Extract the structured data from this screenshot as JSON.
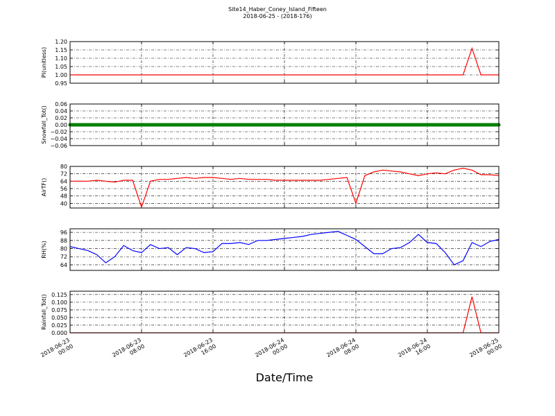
{
  "title": "Site14_Haber_Coney_Island_Fifteen",
  "subtitle": "2018-06-25 - (2018-176)",
  "x_axis": {
    "label": "Date/Time",
    "xlim": [
      "2018-06-23 00:00",
      "2018-06-25 00:00"
    ],
    "xticks": [
      "2018-06-23 00:00",
      "2018-06-23 08:00",
      "2018-06-23 16:00",
      "2018-06-24 00:00",
      "2018-06-24 08:00",
      "2018-06-24 16:00",
      "2018-06-25 00:00"
    ],
    "x": [
      "2018-06-23 00:00",
      "2018-06-23 01:00",
      "2018-06-23 02:00",
      "2018-06-23 03:00",
      "2018-06-23 04:00",
      "2018-06-23 05:00",
      "2018-06-23 06:00",
      "2018-06-23 07:00",
      "2018-06-23 08:00",
      "2018-06-23 09:00",
      "2018-06-23 10:00",
      "2018-06-23 11:00",
      "2018-06-23 12:00",
      "2018-06-23 13:00",
      "2018-06-23 14:00",
      "2018-06-23 15:00",
      "2018-06-23 16:00",
      "2018-06-23 17:00",
      "2018-06-23 18:00",
      "2018-06-23 19:00",
      "2018-06-23 20:00",
      "2018-06-23 21:00",
      "2018-06-23 22:00",
      "2018-06-23 23:00",
      "2018-06-24 00:00",
      "2018-06-24 01:00",
      "2018-06-24 02:00",
      "2018-06-24 03:00",
      "2018-06-24 04:00",
      "2018-06-24 05:00",
      "2018-06-24 06:00",
      "2018-06-24 07:00",
      "2018-06-24 08:00",
      "2018-06-24 09:00",
      "2018-06-24 10:00",
      "2018-06-24 11:00",
      "2018-06-24 12:00",
      "2018-06-24 13:00",
      "2018-06-24 14:00",
      "2018-06-24 15:00",
      "2018-06-24 16:00",
      "2018-06-24 17:00",
      "2018-06-24 18:00",
      "2018-06-24 19:00",
      "2018-06-24 20:00",
      "2018-06-24 21:00",
      "2018-06-24 22:00",
      "2018-06-24 23:00",
      "2018-06-25 00:00"
    ]
  },
  "chart_data": [
    {
      "type": "line",
      "ylabel": "PI(unitless)",
      "grid": true,
      "ylim": [
        0.95,
        1.2
      ],
      "yticks": [
        {
          "value": 0.95,
          "label": "0.95"
        },
        {
          "value": 1.0,
          "label": "1.00"
        },
        {
          "value": 1.05,
          "label": "1.05"
        },
        {
          "value": 1.1,
          "label": "1.10"
        },
        {
          "value": 1.15,
          "label": "1.15"
        },
        {
          "value": 1.2,
          "label": "1.20"
        }
      ],
      "series": [
        {
          "color": "#ff0000",
          "values": [
            1,
            1,
            1,
            1,
            1,
            1,
            1,
            1,
            1,
            1,
            1,
            1,
            1,
            1,
            1,
            1,
            1,
            1,
            1,
            1,
            1,
            1,
            1,
            1,
            1,
            1,
            1,
            1,
            1,
            1,
            1,
            1,
            1,
            1,
            1,
            1,
            1,
            1,
            1,
            1,
            1,
            1,
            1,
            1,
            1,
            1.16,
            1,
            1,
            1
          ]
        }
      ]
    },
    {
      "type": "marker",
      "ylabel": "Snowfall_Tot()",
      "grid": true,
      "ylim": [
        -0.06,
        0.06
      ],
      "yticks": [
        {
          "value": -0.06,
          "label": "−0.06"
        },
        {
          "value": -0.04,
          "label": "−0.04"
        },
        {
          "value": -0.02,
          "label": "−0.02"
        },
        {
          "value": 0,
          "label": "0.00"
        },
        {
          "value": 0.02,
          "label": "0.02"
        },
        {
          "value": 0.04,
          "label": "0.04"
        },
        {
          "value": 0.06,
          "label": "0.06"
        }
      ],
      "series": [
        {
          "color": "#008000",
          "values": [
            0,
            0,
            0,
            0,
            0,
            0,
            0,
            0,
            0,
            0,
            0,
            0,
            0,
            0,
            0,
            0,
            0,
            0,
            0,
            0,
            0,
            0,
            0,
            0,
            0,
            0,
            0,
            0,
            0,
            0,
            0,
            0,
            0,
            0,
            0,
            0,
            0,
            0,
            0,
            0,
            0,
            0,
            0,
            0,
            0,
            0,
            0,
            0,
            0
          ]
        }
      ]
    },
    {
      "type": "line",
      "ylabel": "AirTF()",
      "grid": true,
      "ylim": [
        35,
        80
      ],
      "yticks": [
        40,
        48,
        56,
        64,
        72,
        80
      ],
      "series": [
        {
          "color": "#ff0000",
          "values": [
            64,
            64,
            64,
            65,
            64,
            63,
            65,
            65,
            36,
            64,
            66,
            66,
            67,
            68,
            67,
            68,
            68,
            67,
            66,
            67,
            66,
            66,
            66,
            65,
            65,
            65,
            65,
            65,
            65,
            66,
            67,
            68,
            40,
            70,
            74,
            76,
            75,
            74,
            72,
            70,
            72,
            73,
            72,
            76,
            78,
            76,
            71,
            71,
            70
          ]
        }
      ]
    },
    {
      "type": "line",
      "ylabel": "RH(%)",
      "grid": true,
      "ylim": [
        58.5,
        99.5
      ],
      "yticks": [
        64,
        72,
        80,
        88,
        96
      ],
      "series": [
        {
          "color": "#0000ff",
          "values": [
            82,
            80,
            78,
            74,
            66,
            72,
            83,
            78,
            76,
            84,
            80,
            81,
            74,
            81,
            80,
            76,
            77,
            85,
            85,
            86,
            84,
            88,
            88,
            89,
            90,
            91,
            92,
            94,
            95,
            96,
            97,
            93,
            89,
            82,
            75,
            75,
            80,
            81,
            86,
            94,
            86,
            85,
            76,
            64,
            68,
            86,
            82,
            87,
            89
          ]
        }
      ]
    },
    {
      "type": "line",
      "ylabel": "Rainfall_Tot()",
      "grid": true,
      "ylim": [
        0,
        0.136
      ],
      "yticks": [
        {
          "value": 0,
          "label": "0.000"
        },
        {
          "value": 0.025,
          "label": "0.025"
        },
        {
          "value": 0.05,
          "label": "0.050"
        },
        {
          "value": 0.075,
          "label": "0.075"
        },
        {
          "value": 0.1,
          "label": "0.100"
        },
        {
          "value": 0.125,
          "label": "0.125"
        }
      ],
      "series": [
        {
          "color": "#ff0000",
          "values": [
            0,
            0,
            0,
            0,
            0,
            0,
            0,
            0,
            0,
            0,
            0,
            0,
            0,
            0,
            0,
            0,
            0,
            0,
            0,
            0,
            0,
            0,
            0,
            0,
            0,
            0,
            0,
            0,
            0,
            0,
            0,
            0,
            0,
            0,
            0,
            0,
            0,
            0,
            0,
            0,
            0,
            0,
            0,
            0,
            0,
            0.118,
            0,
            0,
            0
          ]
        }
      ]
    }
  ]
}
